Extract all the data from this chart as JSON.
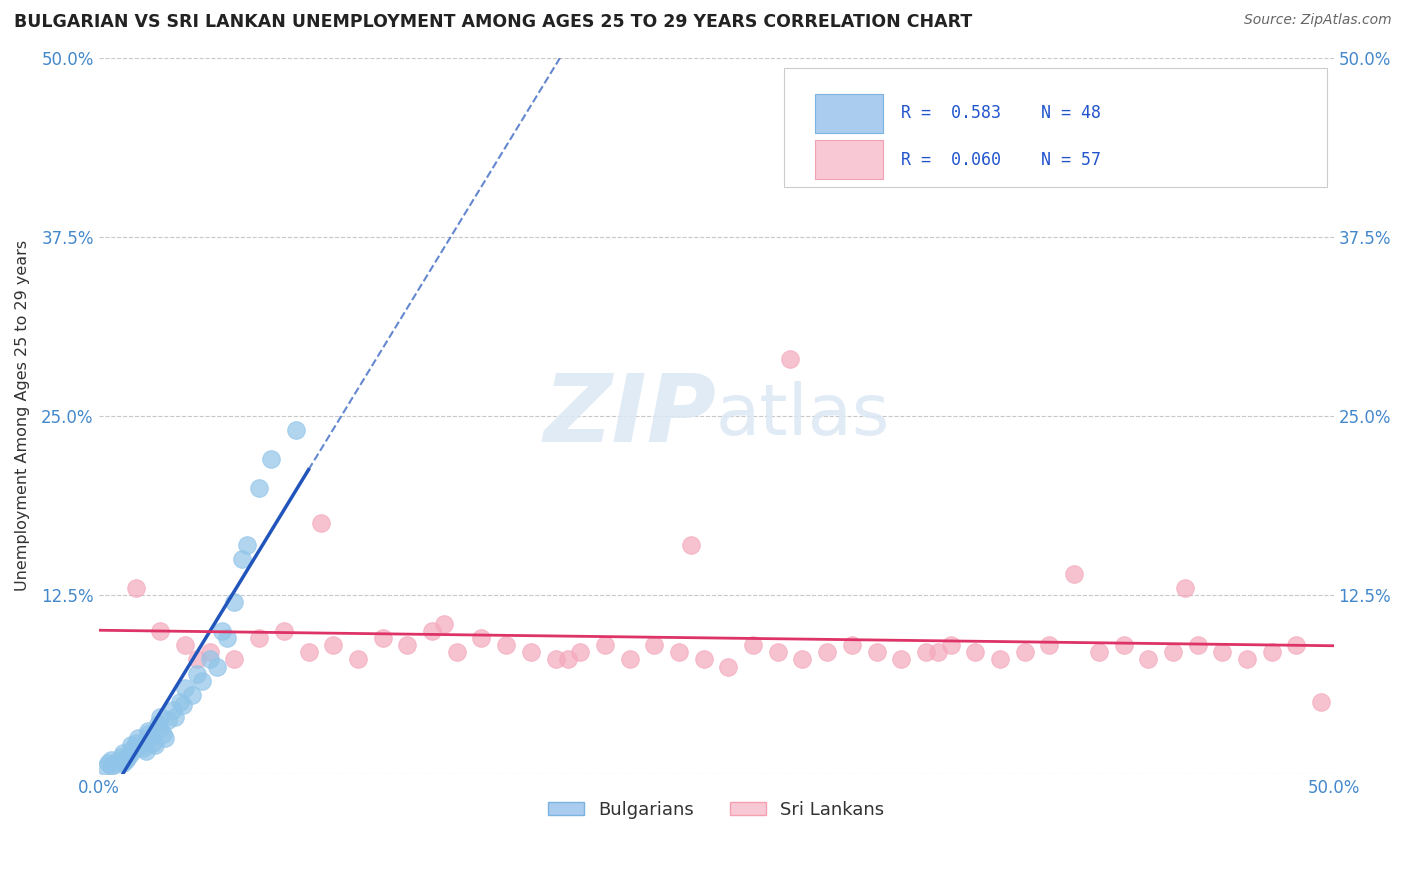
{
  "title": "BULGARIAN VS SRI LANKAN UNEMPLOYMENT AMONG AGES 25 TO 29 YEARS CORRELATION CHART",
  "source": "Source: ZipAtlas.com",
  "ylabel": "Unemployment Among Ages 25 to 29 years",
  "xlim": [
    0.0,
    0.5
  ],
  "ylim": [
    0.0,
    0.5
  ],
  "xticks": [
    0.0,
    0.125,
    0.25,
    0.375,
    0.5
  ],
  "yticks": [
    0.0,
    0.125,
    0.25,
    0.375,
    0.5
  ],
  "xtick_labels": [
    "0.0%",
    "",
    "",
    "",
    "50.0%"
  ],
  "ytick_labels": [
    "",
    "12.5%",
    "25.0%",
    "37.5%",
    "50.0%"
  ],
  "bulgarian_R": 0.583,
  "bulgarian_N": 48,
  "srilankan_R": 0.06,
  "srilankan_N": 57,
  "bulgarian_color": "#90c4e8",
  "srilankan_color": "#f4a8bc",
  "bulgarian_line_color": "#2255bb",
  "srilankan_line_color": "#dd3366",
  "watermark_text": "ZIPatlas",
  "background_color": "#ffffff",
  "grid_color": "#c8c8c8",
  "tick_color": "#4488cc",
  "title_color": "#222222",
  "legend_text_color": "#2255cc",
  "bulgarian_scatter_x": [
    0.003,
    0.004,
    0.005,
    0.005,
    0.007,
    0.008,
    0.009,
    0.01,
    0.01,
    0.011,
    0.012,
    0.013,
    0.013,
    0.014,
    0.015,
    0.016,
    0.017,
    0.018,
    0.019,
    0.02,
    0.02,
    0.021,
    0.022,
    0.023,
    0.024,
    0.025,
    0.025,
    0.026,
    0.027,
    0.028,
    0.03,
    0.031,
    0.033,
    0.034,
    0.035,
    0.038,
    0.04,
    0.042,
    0.045,
    0.048,
    0.05,
    0.052,
    0.055,
    0.058,
    0.06,
    0.065,
    0.07,
    0.08
  ],
  "bulgarian_scatter_y": [
    0.005,
    0.008,
    0.006,
    0.01,
    0.007,
    0.009,
    0.012,
    0.008,
    0.015,
    0.01,
    0.012,
    0.015,
    0.02,
    0.018,
    0.022,
    0.025,
    0.02,
    0.018,
    0.016,
    0.028,
    0.03,
    0.025,
    0.022,
    0.02,
    0.035,
    0.04,
    0.032,
    0.028,
    0.025,
    0.038,
    0.045,
    0.04,
    0.05,
    0.048,
    0.06,
    0.055,
    0.07,
    0.065,
    0.08,
    0.075,
    0.1,
    0.095,
    0.12,
    0.15,
    0.16,
    0.2,
    0.22,
    0.24
  ],
  "srilankan_scatter_x": [
    0.015,
    0.025,
    0.035,
    0.045,
    0.055,
    0.065,
    0.075,
    0.085,
    0.095,
    0.105,
    0.115,
    0.125,
    0.135,
    0.145,
    0.155,
    0.165,
    0.175,
    0.185,
    0.195,
    0.205,
    0.215,
    0.225,
    0.235,
    0.245,
    0.255,
    0.265,
    0.275,
    0.285,
    0.295,
    0.305,
    0.315,
    0.325,
    0.335,
    0.345,
    0.355,
    0.365,
    0.375,
    0.385,
    0.395,
    0.405,
    0.415,
    0.425,
    0.435,
    0.445,
    0.455,
    0.465,
    0.475,
    0.485,
    0.495,
    0.04,
    0.09,
    0.14,
    0.19,
    0.24,
    0.34,
    0.44,
    0.28
  ],
  "srilankan_scatter_y": [
    0.13,
    0.1,
    0.09,
    0.085,
    0.08,
    0.095,
    0.1,
    0.085,
    0.09,
    0.08,
    0.095,
    0.09,
    0.1,
    0.085,
    0.095,
    0.09,
    0.085,
    0.08,
    0.085,
    0.09,
    0.08,
    0.09,
    0.085,
    0.08,
    0.075,
    0.09,
    0.085,
    0.08,
    0.085,
    0.09,
    0.085,
    0.08,
    0.085,
    0.09,
    0.085,
    0.08,
    0.085,
    0.09,
    0.14,
    0.085,
    0.09,
    0.08,
    0.085,
    0.09,
    0.085,
    0.08,
    0.085,
    0.09,
    0.05,
    0.08,
    0.175,
    0.105,
    0.08,
    0.16,
    0.085,
    0.13,
    0.29
  ]
}
